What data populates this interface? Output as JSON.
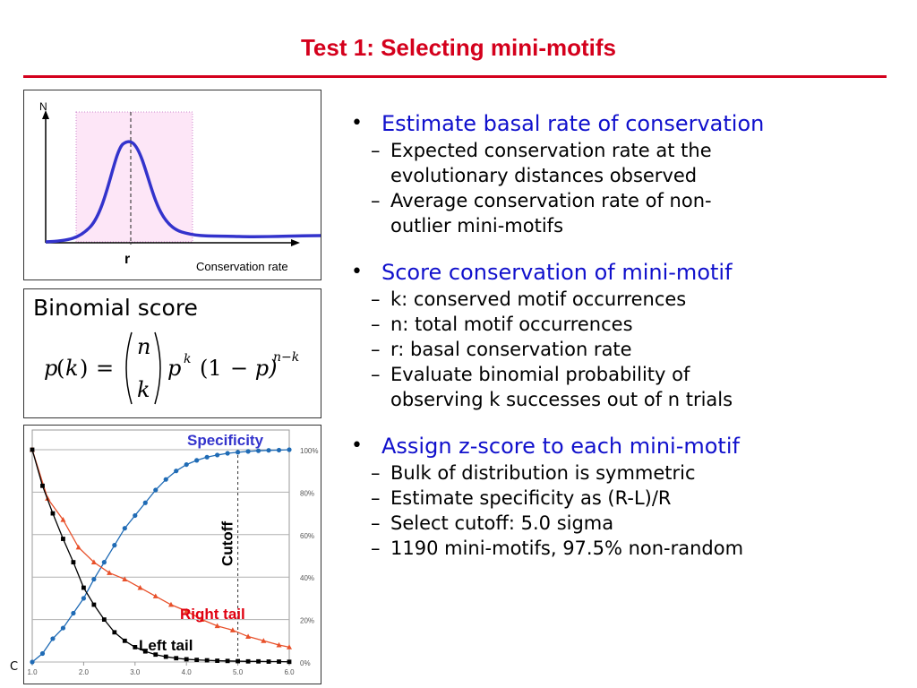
{
  "slide": {
    "title": "Test 1: Selecting mini-motifs",
    "stray_letter": "C"
  },
  "distribution_plot": {
    "y_axis_label": "N",
    "x_axis_label": "Conservation rate",
    "marker_label": "r"
  },
  "binomial": {
    "title": "Binomial score",
    "formula_lhs_p": "p",
    "formula_lhs_k": "k",
    "formula_eq": "=",
    "formula_n": "n",
    "formula_k": "k",
    "formula_p": "p",
    "formula_exp_k": "k",
    "formula_paren": "(1",
    "formula_minus_p": "− p)",
    "formula_exp_nk": "n−k"
  },
  "chart_data": {
    "type": "line",
    "title": "",
    "xlabel": "",
    "ylabel": "",
    "x_ticks": [
      "1.0",
      "2.0",
      "3.0",
      "4.0",
      "5.0",
      "6.0"
    ],
    "y_ticks": [
      "0%",
      "20%",
      "40%",
      "60%",
      "80%",
      "100%"
    ],
    "xlim": [
      1.0,
      6.0
    ],
    "ylim": [
      0,
      100
    ],
    "grid": true,
    "cutoff_x": 5.0,
    "cutoff_label": "Cutoff",
    "series": [
      {
        "name": "Specificity",
        "color": "#1f6bb5",
        "marker": "circle",
        "x": [
          1.0,
          1.2,
          1.4,
          1.6,
          1.8,
          2.0,
          2.2,
          2.4,
          2.6,
          2.8,
          3.0,
          3.2,
          3.4,
          3.6,
          3.8,
          4.0,
          4.2,
          4.4,
          4.6,
          4.8,
          5.0,
          5.2,
          5.4,
          5.6,
          5.8,
          6.0
        ],
        "values": [
          0,
          4,
          11,
          16,
          23,
          30,
          39,
          47,
          55,
          63,
          69,
          75,
          81,
          86,
          90,
          93,
          95,
          96.5,
          97.5,
          98.3,
          98.8,
          99.2,
          99.5,
          99.7,
          99.8,
          100
        ]
      },
      {
        "name": "Right tail",
        "color": "#e8502a",
        "marker": "triangle",
        "x": [
          1.0,
          1.3,
          1.6,
          1.9,
          2.2,
          2.5,
          2.8,
          3.1,
          3.4,
          3.7,
          4.0,
          4.3,
          4.6,
          4.9,
          5.2,
          5.5,
          5.8,
          6.0
        ],
        "values": [
          100,
          77,
          67,
          54,
          47,
          42,
          39,
          35,
          31,
          27,
          24,
          20,
          17,
          15,
          12,
          10,
          8,
          7
        ]
      },
      {
        "name": "Left tail",
        "color": "#000000",
        "marker": "square",
        "x": [
          1.0,
          1.2,
          1.4,
          1.6,
          1.8,
          2.0,
          2.2,
          2.4,
          2.6,
          2.8,
          3.0,
          3.2,
          3.4,
          3.6,
          3.8,
          4.0,
          4.2,
          4.4,
          4.6,
          4.8,
          5.0,
          5.2,
          5.4,
          5.6,
          5.8,
          6.0
        ],
        "values": [
          100,
          83,
          70,
          58,
          47,
          35,
          27,
          20,
          14,
          10,
          7,
          5,
          3.5,
          2.5,
          1.8,
          1.3,
          1,
          0.8,
          0.6,
          0.5,
          0.4,
          0.3,
          0.3,
          0.2,
          0.2,
          0.1
        ]
      }
    ]
  },
  "bullets": [
    {
      "main": "Estimate basal rate of conservation",
      "subs": [
        [
          "Expected conservation rate at the",
          "evolutionary distances observed"
        ],
        [
          "Average conservation rate of non-",
          "outlier mini-motifs"
        ]
      ]
    },
    {
      "main": "Score conservation of mini-motif",
      "subs": [
        [
          "k: conserved motif occurrences"
        ],
        [
          "n: total motif occurrences"
        ],
        [
          "r: basal conservation rate"
        ],
        [
          "Evaluate binomial probability of",
          "observing k successes out of n trials"
        ]
      ]
    },
    {
      "main": "Assign z-score to each mini-motif",
      "subs": [
        [
          "Bulk of distribution is symmetric"
        ],
        [
          "Estimate specificity as (R-L)/R"
        ],
        [
          "Select cutoff: 5.0 sigma"
        ],
        [
          "1190 mini-motifs, 97.5% non-random"
        ]
      ]
    }
  ],
  "colors": {
    "title_red": "#d4001c",
    "bullet_blue": "#1010cc",
    "curve_blue": "#3333cc",
    "band_pink": "#fde6f7"
  }
}
